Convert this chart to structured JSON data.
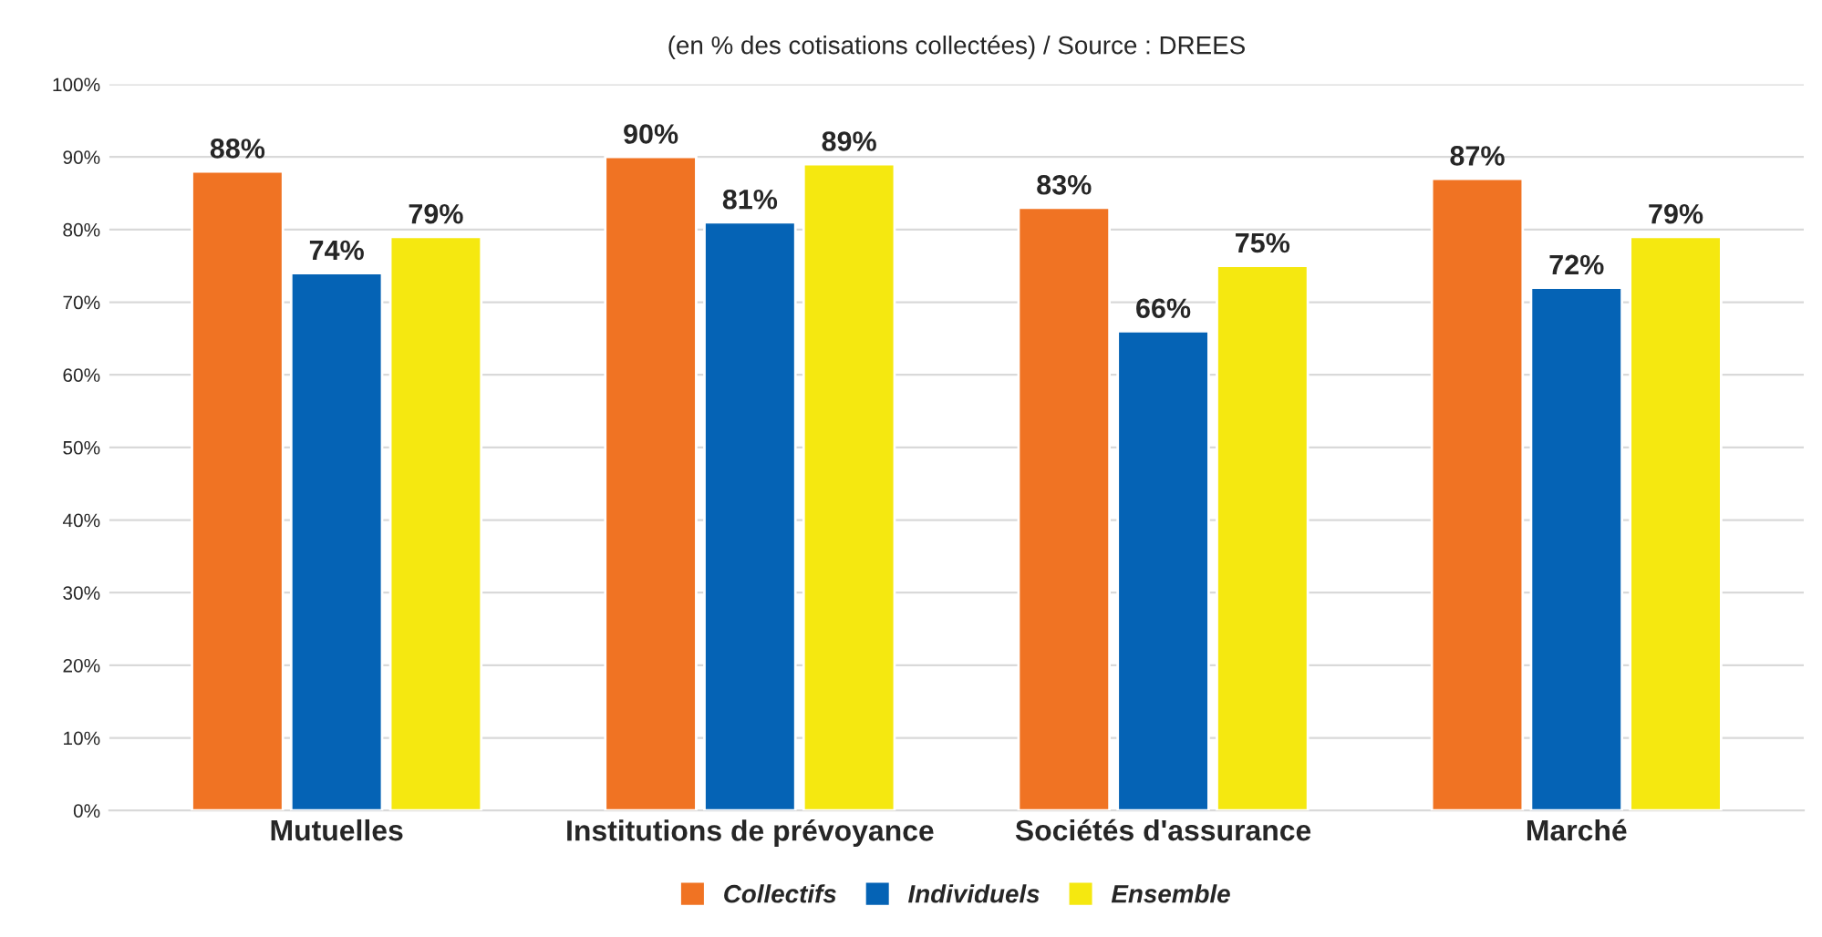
{
  "chart_data": {
    "type": "bar",
    "title": "(en % des cotisations collectées) / Source : DREES",
    "categories": [
      "Mutuelles",
      "Institutions de prévoyance",
      "Sociétés d'assurance",
      "Marché"
    ],
    "series": [
      {
        "name": "Collectifs",
        "color": "#f07323",
        "values": [
          88,
          90,
          83,
          87
        ],
        "value_labels": [
          "88%",
          "90%",
          "83%",
          "87%"
        ]
      },
      {
        "name": "Individuels",
        "color": "#0563b5",
        "values": [
          74,
          81,
          66,
          72
        ],
        "value_labels": [
          "74%",
          "81%",
          "66%",
          "72%"
        ]
      },
      {
        "name": "Ensemble",
        "color": "#f5e810",
        "values": [
          79,
          89,
          75,
          79
        ],
        "value_labels": [
          "79%",
          "89%",
          "75%",
          "79%"
        ]
      }
    ],
    "ylim": [
      0,
      100
    ],
    "yticks": [
      {
        "value": 0,
        "label": "0%"
      },
      {
        "value": 10,
        "label": "10%"
      },
      {
        "value": 20,
        "label": "20%"
      },
      {
        "value": 30,
        "label": "30%"
      },
      {
        "value": 40,
        "label": "40%"
      },
      {
        "value": 50,
        "label": "50%"
      },
      {
        "value": 60,
        "label": "60%"
      },
      {
        "value": 70,
        "label": "70%"
      },
      {
        "value": 80,
        "label": "80%"
      },
      {
        "value": 90,
        "label": "90%"
      },
      {
        "value": 100,
        "label": "100%"
      }
    ],
    "grid": "y",
    "legend": "bottom"
  }
}
